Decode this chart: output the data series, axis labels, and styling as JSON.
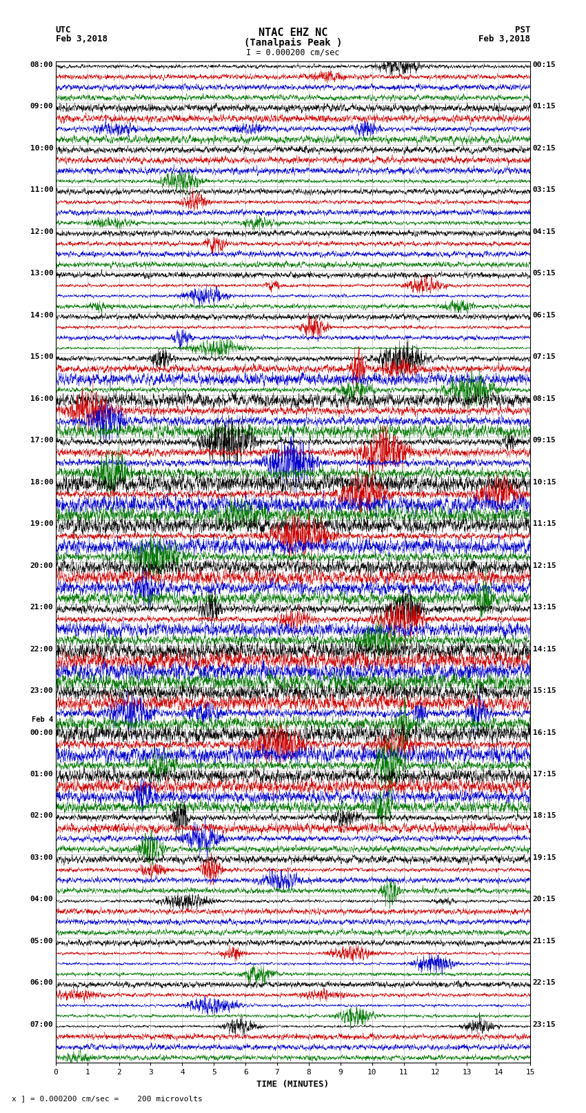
{
  "title_line1": "NTAC EHZ NC",
  "title_line2": "(Tanalpais Peak )",
  "scale_label": "I = 0.000200 cm/sec",
  "xlabel": "TIME (MINUTES)",
  "bottom_label": "x ] = 0.000200 cm/sec =    200 microvolts",
  "xlim": [
    0,
    15
  ],
  "xticks": [
    0,
    1,
    2,
    3,
    4,
    5,
    6,
    7,
    8,
    9,
    10,
    11,
    12,
    13,
    14,
    15
  ],
  "bg_color": "#ffffff",
  "grid_color": "#aaaaaa",
  "trace_colors": [
    "#000000",
    "#cc0000",
    "#0000cc",
    "#007700"
  ],
  "fig_width": 8.5,
  "fig_height": 16.13,
  "left_labels": [
    "08:00",
    "09:00",
    "10:00",
    "11:00",
    "12:00",
    "13:00",
    "14:00",
    "15:00",
    "16:00",
    "17:00",
    "18:00",
    "19:00",
    "20:00",
    "21:00",
    "22:00",
    "23:00",
    "Feb 4\n00:00",
    "01:00",
    "02:00",
    "03:00",
    "04:00",
    "05:00",
    "06:00",
    "07:00"
  ],
  "right_labels": [
    "00:15",
    "01:15",
    "02:15",
    "03:15",
    "04:15",
    "05:15",
    "06:15",
    "07:15",
    "08:15",
    "09:15",
    "10:15",
    "11:15",
    "12:15",
    "13:15",
    "14:15",
    "15:15",
    "16:15",
    "17:15",
    "18:15",
    "19:15",
    "20:15",
    "21:15",
    "22:15",
    "23:15"
  ],
  "noise_seed": 12345,
  "trace_amplitude_base": 0.28,
  "trace_amplitude_scale": [
    0.3,
    0.3,
    0.3,
    0.3,
    0.4,
    0.4,
    0.4,
    0.4,
    0.35,
    0.35,
    0.35,
    0.35,
    0.3,
    0.3,
    0.3,
    0.3,
    0.3,
    0.3,
    0.3,
    0.3,
    0.3,
    0.3,
    0.3,
    0.3,
    0.3,
    0.3,
    0.3,
    0.3,
    0.6,
    0.6,
    0.6,
    0.6,
    0.7,
    0.7,
    0.7,
    0.7,
    0.8,
    0.8,
    0.8,
    0.8,
    0.9,
    0.9,
    0.9,
    0.9,
    0.8,
    0.8,
    0.8,
    0.8,
    0.75,
    0.75,
    0.75,
    0.75,
    0.7,
    0.7,
    0.7,
    0.7,
    0.9,
    0.9,
    0.9,
    0.9,
    0.8,
    0.8,
    0.8,
    0.8,
    0.85,
    0.85,
    0.85,
    0.85,
    0.7,
    0.7,
    0.7,
    0.7,
    0.5,
    0.5,
    0.5,
    0.5,
    0.4,
    0.4,
    0.4,
    0.4,
    0.3,
    0.3,
    0.3,
    0.3,
    0.3,
    0.3,
    0.3,
    0.3,
    0.3,
    0.3,
    0.3,
    0.3,
    0.3,
    0.3,
    0.3,
    0.3
  ]
}
